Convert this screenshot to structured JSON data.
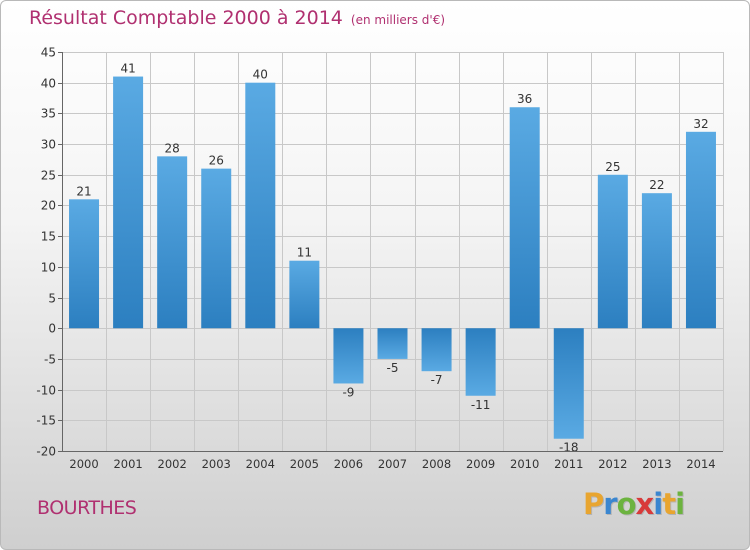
{
  "header": {
    "title": "Résultat Comptable 2000 à 2014",
    "subtitle": "(en milliers d'€)"
  },
  "footer": {
    "commune": "BOURTHES",
    "logo": "Proxiti",
    "logo_letters": [
      {
        "char": "P",
        "color": "#e8a530"
      },
      {
        "char": "r",
        "color": "#3a86d0"
      },
      {
        "char": "o",
        "color": "#6cb33f"
      },
      {
        "char": "x",
        "color": "#d83a3a"
      },
      {
        "char": "i",
        "color": "#3a86d0"
      },
      {
        "char": "t",
        "color": "#e8a530"
      },
      {
        "char": "i",
        "color": "#6cb33f"
      }
    ]
  },
  "colors": {
    "bar_top": "#5aaae3",
    "bar_bottom": "#2c7fc0",
    "grid": "#c8c8c8",
    "axis": "#666666",
    "accent": "#b03070"
  },
  "chart_data": {
    "type": "bar",
    "title": "Résultat Comptable 2000 à 2014",
    "subtitle": "(en milliers d'€)",
    "xlabel": "",
    "ylabel": "",
    "categories": [
      "2000",
      "2001",
      "2002",
      "2003",
      "2004",
      "2005",
      "2006",
      "2007",
      "2008",
      "2009",
      "2010",
      "2011",
      "2012",
      "2013",
      "2014"
    ],
    "values": [
      21,
      41,
      28,
      26,
      40,
      11,
      -9,
      -5,
      -7,
      -11,
      36,
      -18,
      25,
      22,
      32
    ],
    "ylim": [
      -20,
      45
    ],
    "yticks": [
      -20,
      -15,
      -10,
      -5,
      0,
      5,
      10,
      15,
      20,
      25,
      30,
      35,
      40,
      45
    ],
    "grid": true
  }
}
